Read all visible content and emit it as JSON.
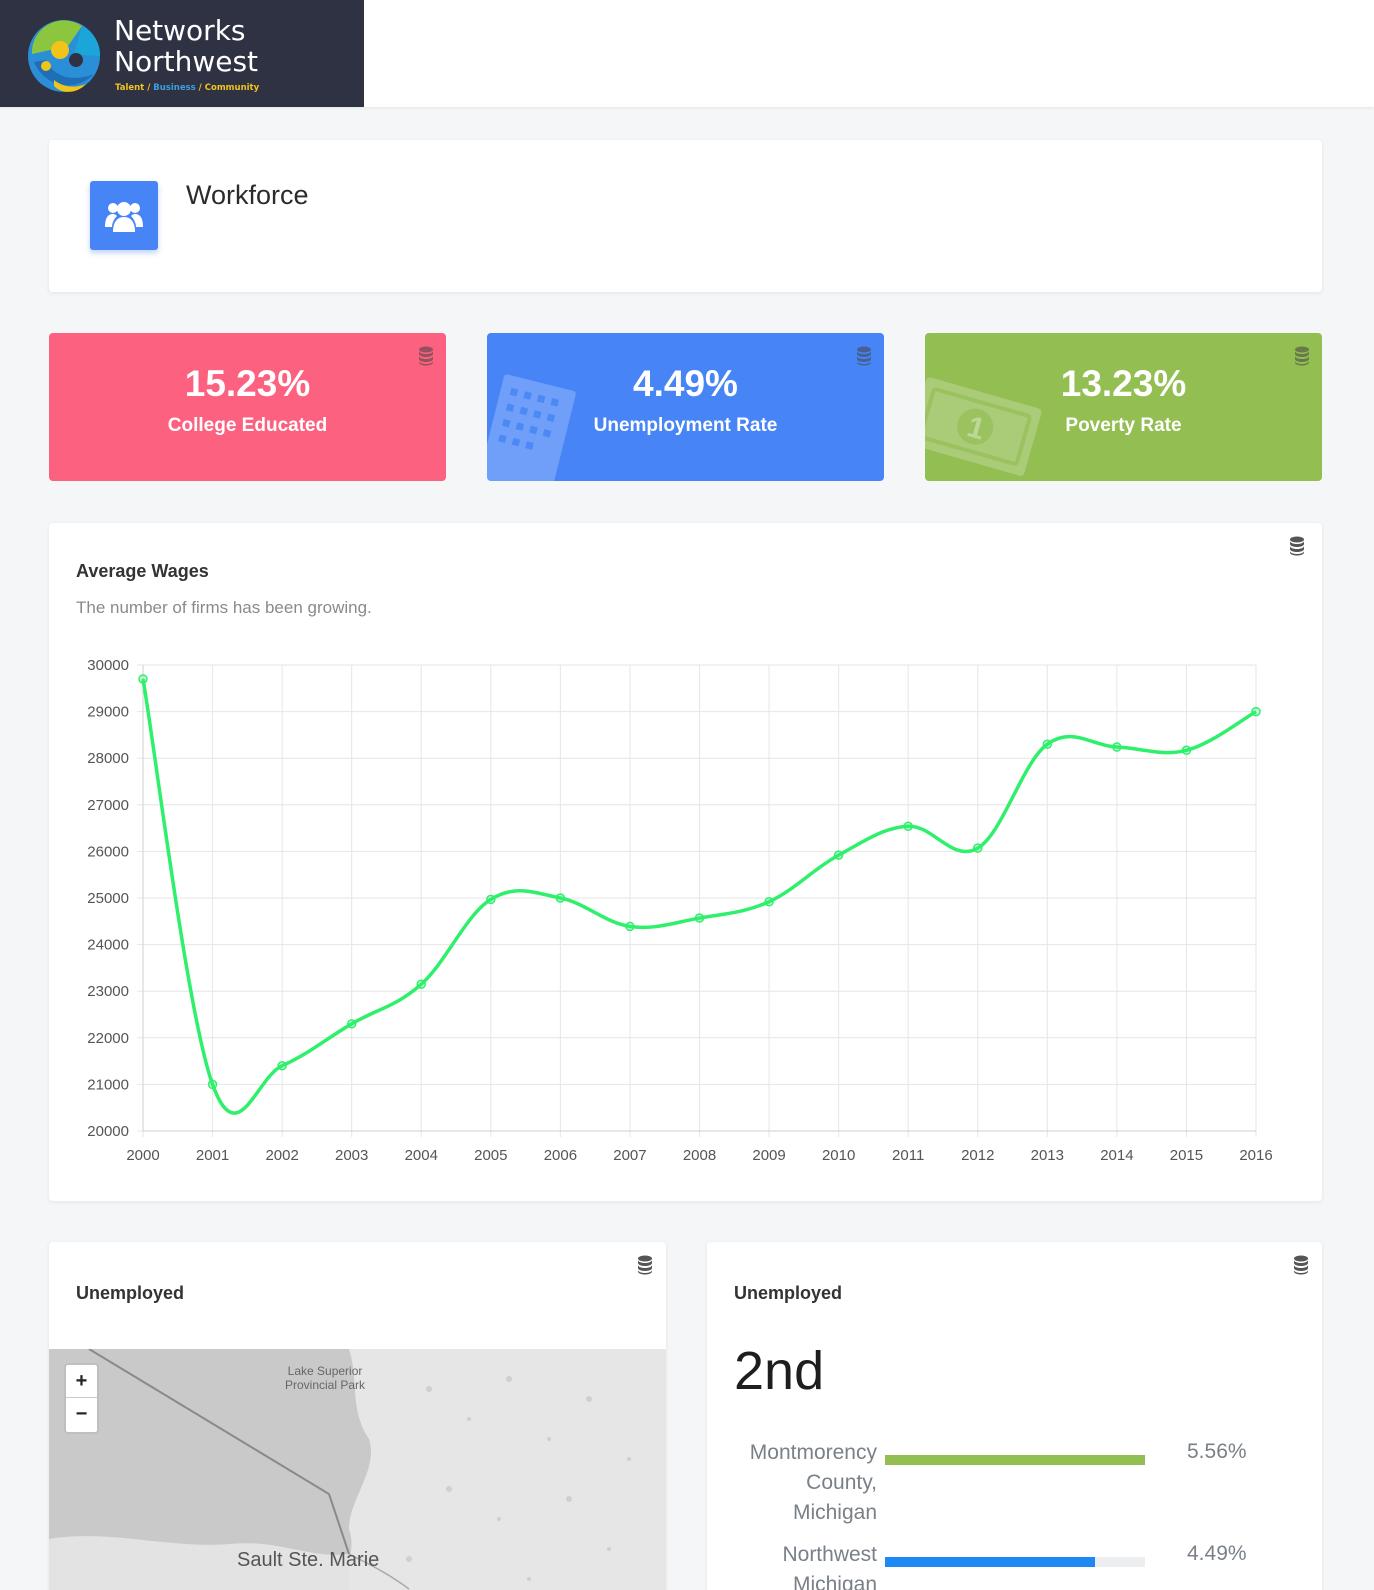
{
  "brand": {
    "name_line1": "Networks",
    "name_line2": "Northwest",
    "tagline": {
      "talent": "Talent",
      "business": "Business",
      "community": "Community",
      "sep": " / "
    },
    "logo_icon": "networks-northwest-logo"
  },
  "header": {
    "title": "Workforce",
    "icon": "users-icon",
    "icon_color": "#4785f7"
  },
  "stats": [
    {
      "value": "15.23%",
      "label": "College Educated",
      "color": "#fc6180",
      "icon": "database-icon"
    },
    {
      "value": "4.49%",
      "label": "Unemployment Rate",
      "color": "#4785f7",
      "icon": "database-icon",
      "deco": "building-icon"
    },
    {
      "value": "13.23%",
      "label": "Poverty Rate",
      "color": "#93be52",
      "icon": "database-icon",
      "deco": "money-icon"
    }
  ],
  "wages": {
    "title": "Average Wages",
    "subtitle": "The number of firms has been growing.",
    "icon": "database-icon"
  },
  "chart_data": {
    "type": "line",
    "title": "Average Wages",
    "subtitle": "The number of firms has been growing.",
    "x": [
      "2000",
      "2001",
      "2002",
      "2003",
      "2004",
      "2005",
      "2006",
      "2007",
      "2008",
      "2009",
      "2010",
      "2011",
      "2012",
      "2013",
      "2014",
      "2015",
      "2016"
    ],
    "series": [
      {
        "values": [
          29700,
          21000,
          21400,
          22300,
          23150,
          24970,
          25000,
          24390,
          24570,
          24920,
          25920,
          26540,
          26070,
          28300,
          28240,
          28170,
          29000
        ],
        "color": "#2ef06c"
      }
    ],
    "yticks": [
      "30000",
      "29000",
      "28000",
      "27000",
      "26000",
      "25000",
      "24000",
      "23000",
      "22000",
      "21000",
      "20000"
    ],
    "ylim": [
      20000,
      30000
    ],
    "grid": true,
    "legend": "none"
  },
  "map_panel": {
    "title": "Unemployed",
    "icon": "database-icon",
    "zoom_in": "+",
    "zoom_out": "−",
    "labels": {
      "park_line1": "Lake Superior",
      "park_line2": "Provincial Park",
      "city": "Sault Ste. Marie"
    }
  },
  "rank_panel": {
    "title": "Unemployed",
    "icon": "database-icon",
    "rank": "2nd",
    "rows": [
      {
        "name_lines": [
          "Montmorency",
          "County,",
          "Michigan"
        ],
        "value": "5.56%",
        "fraction": 1.0,
        "color": "#93be52"
      },
      {
        "name_lines": [
          "Northwest",
          "Michigan"
        ],
        "value": "4.49%",
        "fraction": 0.807,
        "color": "#1e88f5"
      }
    ]
  }
}
